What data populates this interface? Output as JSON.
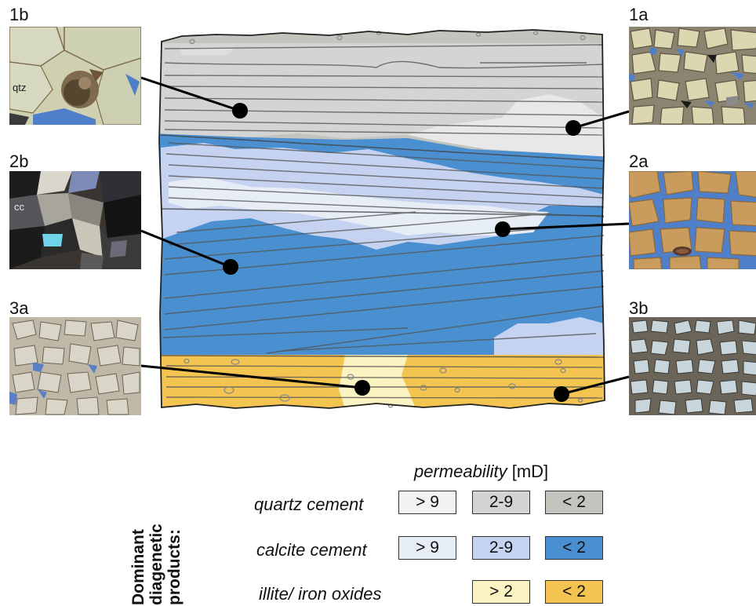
{
  "panels": {
    "p1b": {
      "label": "1b",
      "mineral": "qtz"
    },
    "p2b": {
      "label": "2b",
      "mineral": "cc"
    },
    "p3a": {
      "label": "3a"
    },
    "p1a": {
      "label": "1a"
    },
    "p2a": {
      "label": "2a"
    },
    "p3b": {
      "label": "3b"
    }
  },
  "legend": {
    "title_italic": "permeability",
    "title_unit": "[mD]",
    "side_title": [
      "Dominant",
      "diagenetic",
      "products:"
    ],
    "rows": [
      {
        "label": "quartz cement",
        "swatches": [
          {
            "text": "> 9",
            "color": "#f2f2f2"
          },
          {
            "text": "2-9",
            "color": "#d4d4d4"
          },
          {
            "text": "< 2",
            "color": "#c3c4bd"
          }
        ]
      },
      {
        "label": "calcite cement",
        "swatches": [
          {
            "text": "> 9",
            "color": "#e6edf5"
          },
          {
            "text": "2-9",
            "color": "#c5d3f0"
          },
          {
            "text": "< 2",
            "color": "#4a8fd0"
          }
        ]
      },
      {
        "label": "illite/ iron oxides",
        "swatches": [
          {
            "text": "> 2",
            "color": "#fbf3c2"
          },
          {
            "text": "< 2",
            "color": "#f4c451"
          }
        ]
      }
    ]
  },
  "colors": {
    "quartz_dark": "#c3c4bd",
    "quartz_mid": "#d4d4d4",
    "quartz_light": "#f2f2f2",
    "calcite_dark": "#4a8fd0",
    "calcite_mid": "#c5d3f0",
    "calcite_light": "#e6edf5",
    "illite_dark": "#f4c451",
    "illite_light": "#fbf3c2",
    "pore_blue": "#4f7fc9"
  }
}
